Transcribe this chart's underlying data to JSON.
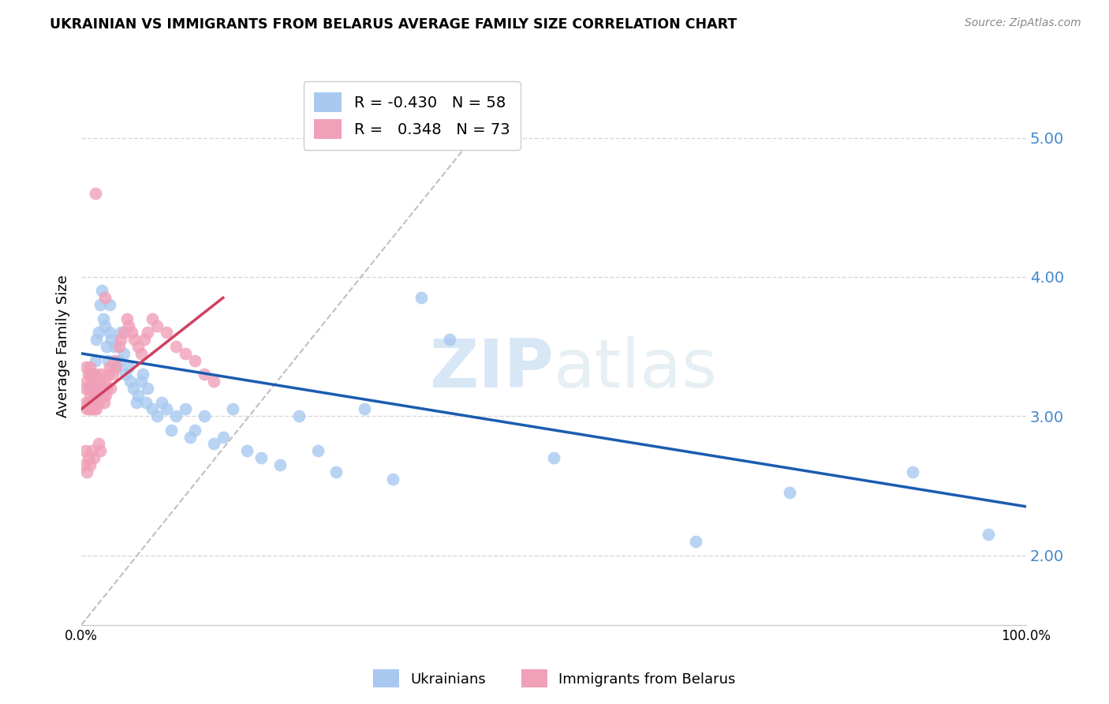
{
  "title": "UKRAINIAN VS IMMIGRANTS FROM BELARUS AVERAGE FAMILY SIZE CORRELATION CHART",
  "source": "Source: ZipAtlas.com",
  "ylabel": "Average Family Size",
  "legend_label_1": "Ukrainians",
  "legend_label_2": "Immigrants from Belarus",
  "r1": -0.43,
  "n1": 58,
  "r2": 0.348,
  "n2": 73,
  "xlim": [
    0.0,
    1.0
  ],
  "ylim": [
    1.5,
    5.5
  ],
  "yticks": [
    2.0,
    3.0,
    4.0,
    5.0
  ],
  "xticks": [
    0.0,
    0.1,
    0.2,
    0.3,
    0.4,
    0.5,
    0.6,
    0.7,
    0.8,
    0.9,
    1.0
  ],
  "xticklabels": [
    "0.0%",
    "",
    "",
    "",
    "",
    "",
    "",
    "",
    "",
    "",
    "100.0%"
  ],
  "color_blue": "#a8c8f0",
  "color_pink": "#f0a0b8",
  "color_line_blue": "#1a5cb0",
  "color_line_pink": "#d04060",
  "color_diagonal": "#c0c0c0",
  "color_grid": "#d8d8d8",
  "color_right_axis": "#4488cc",
  "watermark_color": "#d0e8f8",
  "blue_points_x": [
    0.008,
    0.01,
    0.012,
    0.015,
    0.016,
    0.018,
    0.02,
    0.022,
    0.023,
    0.025,
    0.027,
    0.028,
    0.03,
    0.03,
    0.032,
    0.035,
    0.037,
    0.04,
    0.042,
    0.045,
    0.047,
    0.05,
    0.052,
    0.055,
    0.058,
    0.06,
    0.063,
    0.065,
    0.068,
    0.07,
    0.075,
    0.08,
    0.085,
    0.09,
    0.095,
    0.1,
    0.11,
    0.115,
    0.12,
    0.13,
    0.14,
    0.15,
    0.16,
    0.175,
    0.19,
    0.21,
    0.23,
    0.25,
    0.27,
    0.3,
    0.33,
    0.36,
    0.39,
    0.5,
    0.65,
    0.75,
    0.88,
    0.96
  ],
  "blue_points_y": [
    3.2,
    3.1,
    3.3,
    3.4,
    3.55,
    3.6,
    3.8,
    3.9,
    3.7,
    3.65,
    3.5,
    3.4,
    3.6,
    3.8,
    3.55,
    3.5,
    3.35,
    3.4,
    3.6,
    3.45,
    3.3,
    3.35,
    3.25,
    3.2,
    3.1,
    3.15,
    3.25,
    3.3,
    3.1,
    3.2,
    3.05,
    3.0,
    3.1,
    3.05,
    2.9,
    3.0,
    3.05,
    2.85,
    2.9,
    3.0,
    2.8,
    2.85,
    3.05,
    2.75,
    2.7,
    2.65,
    3.0,
    2.75,
    2.6,
    3.05,
    2.55,
    3.85,
    3.55,
    2.7,
    2.1,
    2.45,
    2.6,
    2.15
  ],
  "pink_points_x": [
    0.004,
    0.005,
    0.005,
    0.006,
    0.006,
    0.007,
    0.007,
    0.008,
    0.008,
    0.009,
    0.009,
    0.01,
    0.01,
    0.01,
    0.011,
    0.011,
    0.012,
    0.012,
    0.013,
    0.013,
    0.014,
    0.014,
    0.015,
    0.015,
    0.016,
    0.016,
    0.017,
    0.018,
    0.019,
    0.02,
    0.021,
    0.022,
    0.023,
    0.024,
    0.025,
    0.026,
    0.027,
    0.028,
    0.03,
    0.031,
    0.033,
    0.035,
    0.037,
    0.04,
    0.042,
    0.045,
    0.048,
    0.05,
    0.053,
    0.056,
    0.06,
    0.063,
    0.067,
    0.07,
    0.075,
    0.08,
    0.09,
    0.1,
    0.11,
    0.12,
    0.13,
    0.14,
    0.003,
    0.004,
    0.006,
    0.007,
    0.009,
    0.011,
    0.013,
    0.018,
    0.02,
    0.015,
    0.025
  ],
  "pink_points_y": [
    3.2,
    3.35,
    3.1,
    3.25,
    3.05,
    3.3,
    3.1,
    3.2,
    3.05,
    3.35,
    3.15,
    3.3,
    3.2,
    3.1,
    3.25,
    3.05,
    3.2,
    3.1,
    3.15,
    3.05,
    3.25,
    3.1,
    3.3,
    3.15,
    3.2,
    3.05,
    3.15,
    3.1,
    3.2,
    3.25,
    3.3,
    3.2,
    3.15,
    3.1,
    3.25,
    3.15,
    3.2,
    3.3,
    3.35,
    3.2,
    3.3,
    3.4,
    3.35,
    3.5,
    3.55,
    3.6,
    3.7,
    3.65,
    3.6,
    3.55,
    3.5,
    3.45,
    3.55,
    3.6,
    3.7,
    3.65,
    3.6,
    3.5,
    3.45,
    3.4,
    3.3,
    3.25,
    2.65,
    2.75,
    2.6,
    2.7,
    2.65,
    2.75,
    2.7,
    2.8,
    2.75,
    4.6,
    3.85
  ],
  "blue_trendline_x": [
    0.0,
    1.0
  ],
  "blue_trendline_y": [
    3.45,
    2.35
  ],
  "pink_trendline_x": [
    0.0,
    0.15
  ],
  "pink_trendline_y": [
    3.05,
    3.85
  ],
  "diag_line_x": [
    0.0,
    0.45
  ],
  "diag_line_y": [
    1.5,
    5.3
  ]
}
